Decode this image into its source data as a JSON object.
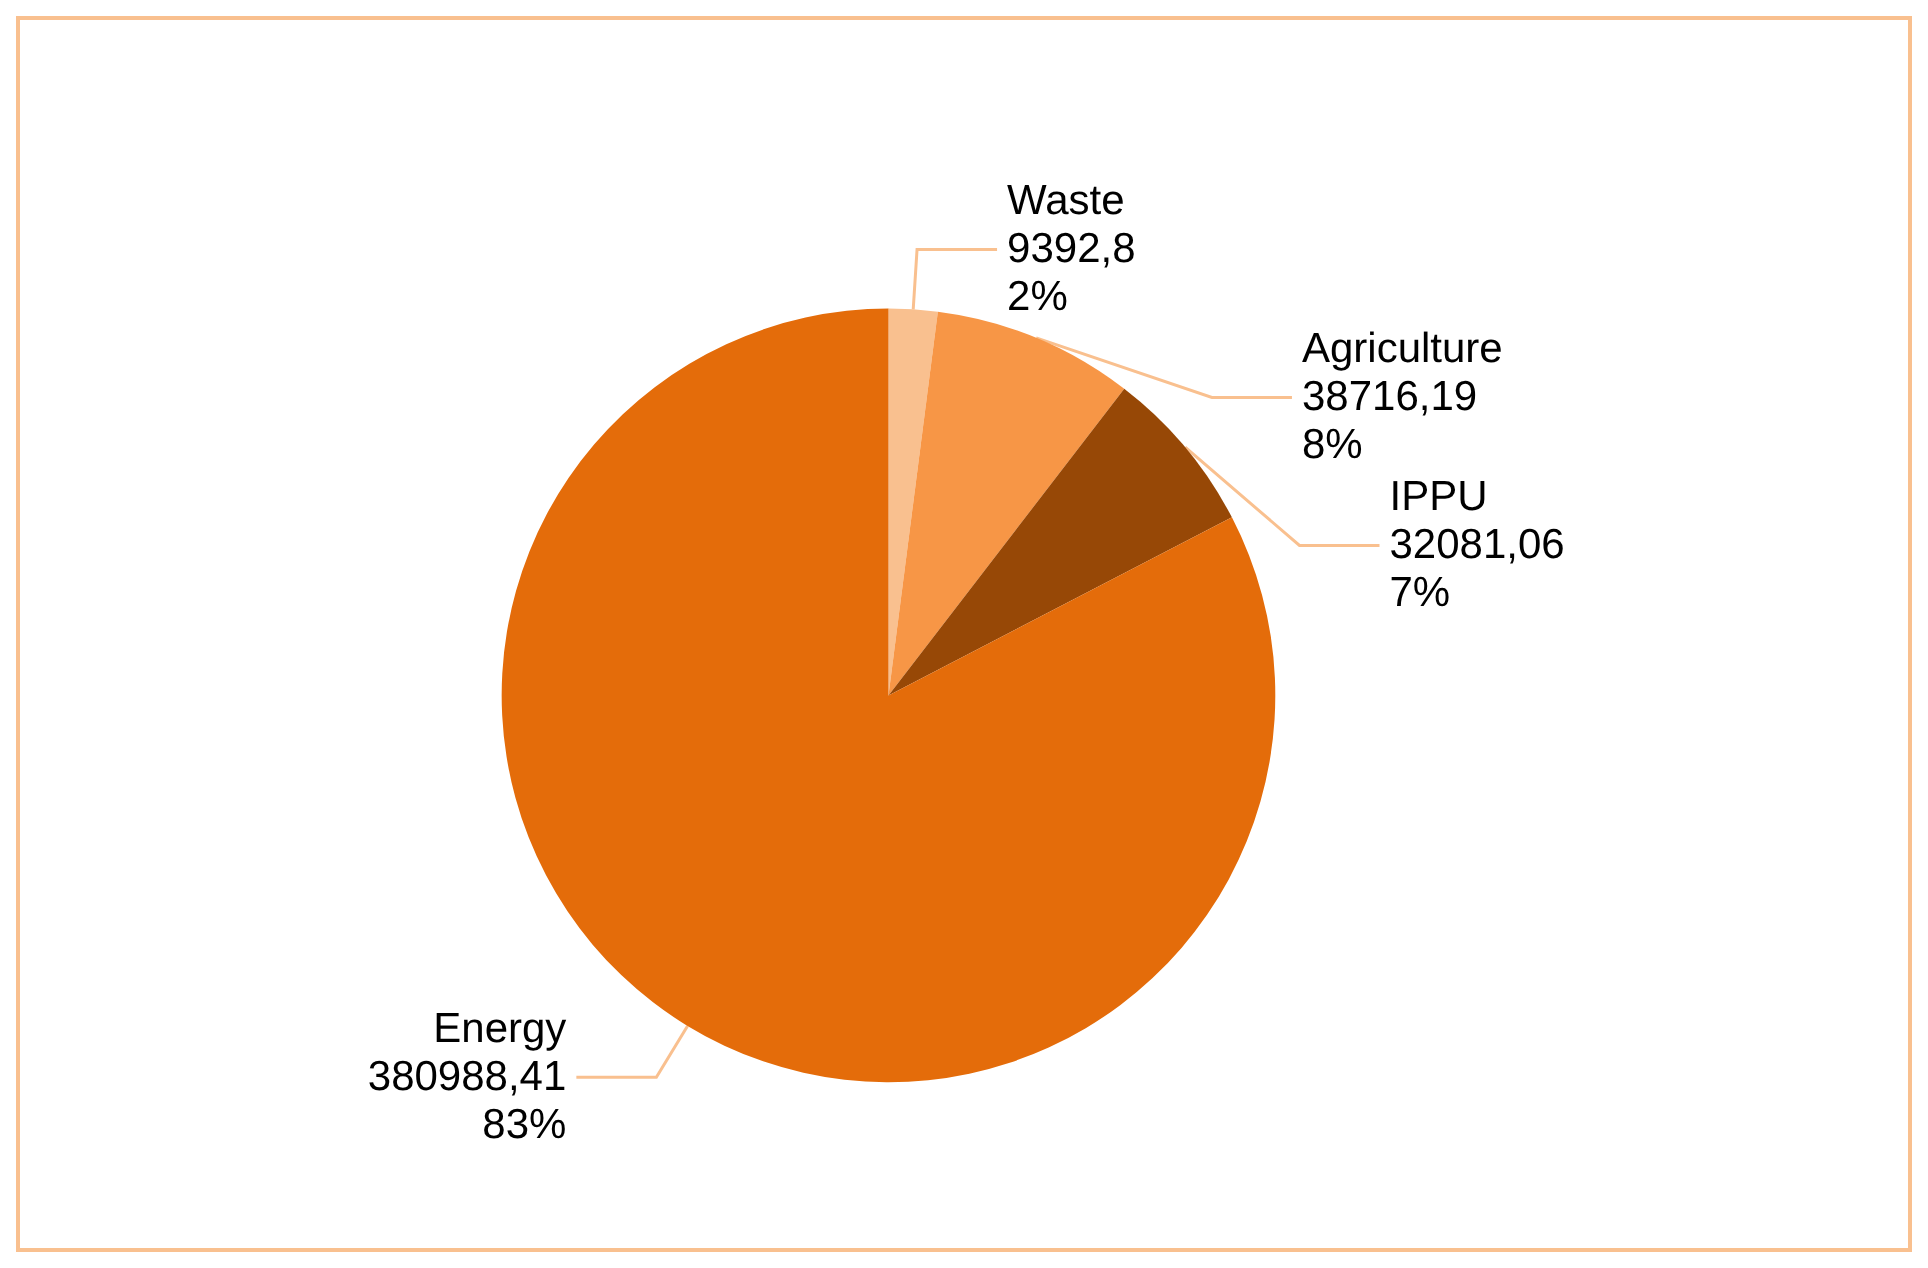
{
  "chart_data": {
    "type": "pie",
    "categories": [
      "Waste",
      "Agriculture",
      "IPPU",
      "Energy"
    ],
    "values": [
      9392.8,
      38716.19,
      32081.06,
      380988.41
    ],
    "colors": [
      "#f9c08f",
      "#f79646",
      "#974806",
      "#e46c0a"
    ],
    "value_labels": [
      "9392,8\n2%",
      "38716,19\n8%",
      "32081,06\n7%",
      "380988,41\n83%"
    ],
    "legend": false
  }
}
